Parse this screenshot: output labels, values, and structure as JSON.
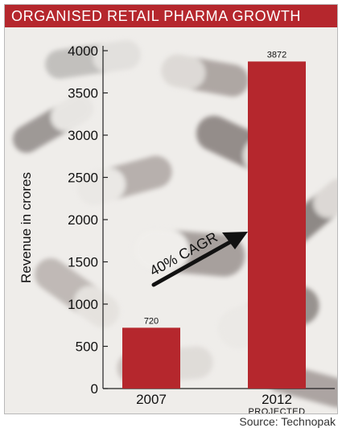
{
  "chart_data": {
    "type": "bar",
    "title": "ORGANISED RETAIL PHARMA GROWTH",
    "categories": [
      "2007",
      "2012"
    ],
    "category_sublabels": [
      "",
      "PROJECTED"
    ],
    "values": [
      720,
      3872
    ],
    "data_labels": [
      "720",
      "3872"
    ],
    "ylabel": "Revenue in crores",
    "xlabel": "",
    "ylim": [
      0,
      4000
    ],
    "yticks": [
      0,
      500,
      1000,
      1500,
      2000,
      2500,
      3000,
      3500,
      4000
    ],
    "grid": false,
    "annotation": "40% CAGR",
    "source": "Source: Technopak",
    "colors": {
      "bar": "#b5272d",
      "title_bg": "#b5272d",
      "arrow": "#111111"
    }
  }
}
